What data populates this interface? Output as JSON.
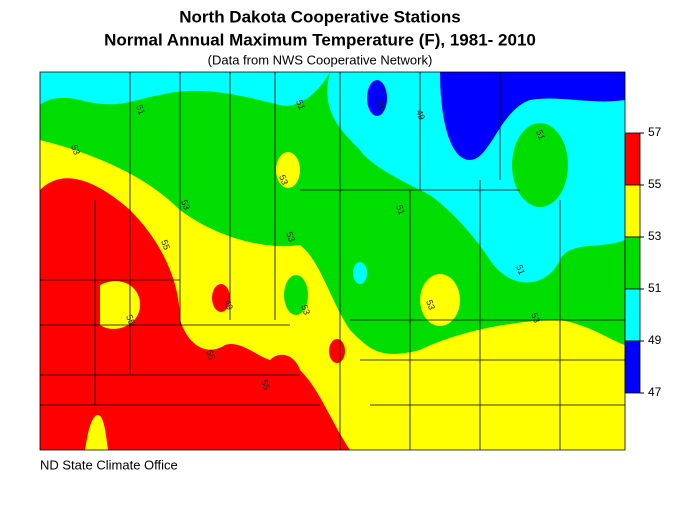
{
  "header": {
    "title": "North Dakota Cooperative Stations",
    "subtitle": "Normal Annual Maximum Temperature (F), 1981- 2010",
    "note": "(Data from NWS Cooperative Network)"
  },
  "legend": {
    "ticks": [
      57,
      55,
      53,
      51,
      49,
      47
    ],
    "colors": [
      "#ff0000",
      "#ffff00",
      "#00dd00",
      "#00ffff",
      "#0000ff"
    ]
  },
  "contour_labels": [
    51,
    51,
    49,
    49,
    51,
    51,
    51,
    53,
    53,
    53,
    53,
    53,
    53,
    53,
    55,
    55,
    55,
    55,
    49
  ],
  "footer": "ND State Climate Office"
}
